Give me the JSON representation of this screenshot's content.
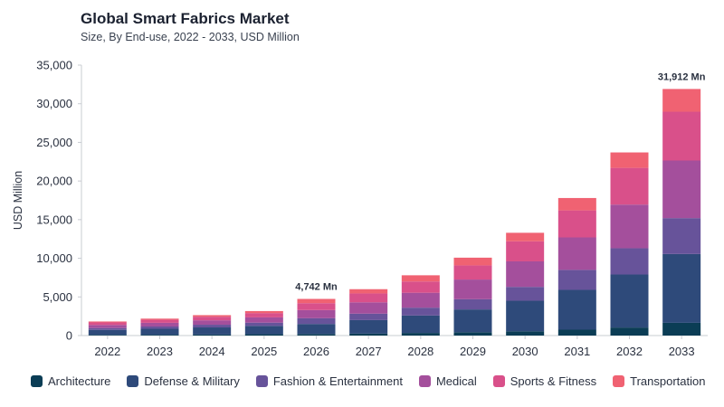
{
  "header": {
    "title": "Global Smart Fabrics Market",
    "subtitle": "Size, By End-use, 2022 - 2033, USD Million"
  },
  "chart_data": {
    "type": "bar",
    "stacked": true,
    "title": "Global Smart Fabrics Market",
    "subtitle": "Size, By End-use, 2022 - 2033, USD Million",
    "xlabel": "",
    "ylabel": "USD Million",
    "ylim": [
      0,
      35000
    ],
    "yticks": [
      0,
      5000,
      10000,
      15000,
      20000,
      25000,
      30000,
      35000
    ],
    "ytick_labels": [
      "0",
      "5,000",
      "10,000",
      "15,000",
      "20,000",
      "25,000",
      "30,000",
      "35,000"
    ],
    "grid": false,
    "legend_position": "bottom",
    "categories": [
      "2022",
      "2023",
      "2024",
      "2025",
      "2026",
      "2027",
      "2028",
      "2029",
      "2030",
      "2031",
      "2032",
      "2033"
    ],
    "series": [
      {
        "name": "Architecture",
        "color": "#0b3d55",
        "values": [
          80,
          100,
          130,
          170,
          200,
          250,
          340,
          430,
          560,
          760,
          1040,
          1650
        ]
      },
      {
        "name": "Defense & Military",
        "color": "#2e4a7a",
        "values": [
          650,
          780,
          920,
          1080,
          1300,
          1750,
          2250,
          2950,
          3950,
          5150,
          6860,
          8900
        ]
      },
      {
        "name": "Fashion & Entertainment",
        "color": "#67539a",
        "values": [
          240,
          290,
          350,
          420,
          740,
          830,
          1020,
          1320,
          1790,
          2590,
          3400,
          4650
        ]
      },
      {
        "name": "Medical",
        "color": "#a44f9c",
        "values": [
          400,
          480,
          570,
          680,
          1060,
          1470,
          1930,
          2550,
          3300,
          4200,
          5650,
          7450
        ]
      },
      {
        "name": "Sports & Fitness",
        "color": "#d9508a",
        "values": [
          330,
          390,
          470,
          560,
          890,
          1150,
          1460,
          1830,
          2600,
          3500,
          4750,
          6320
        ]
      },
      {
        "name": "Transportation",
        "color": "#f06272",
        "values": [
          120,
          150,
          200,
          260,
          552,
          550,
          800,
          1000,
          1100,
          1600,
          2000,
          2942
        ]
      }
    ],
    "annotations": [
      {
        "category": "2026",
        "text": "4,742 Mn"
      },
      {
        "category": "2033",
        "text": "31,912 Mn"
      }
    ]
  }
}
